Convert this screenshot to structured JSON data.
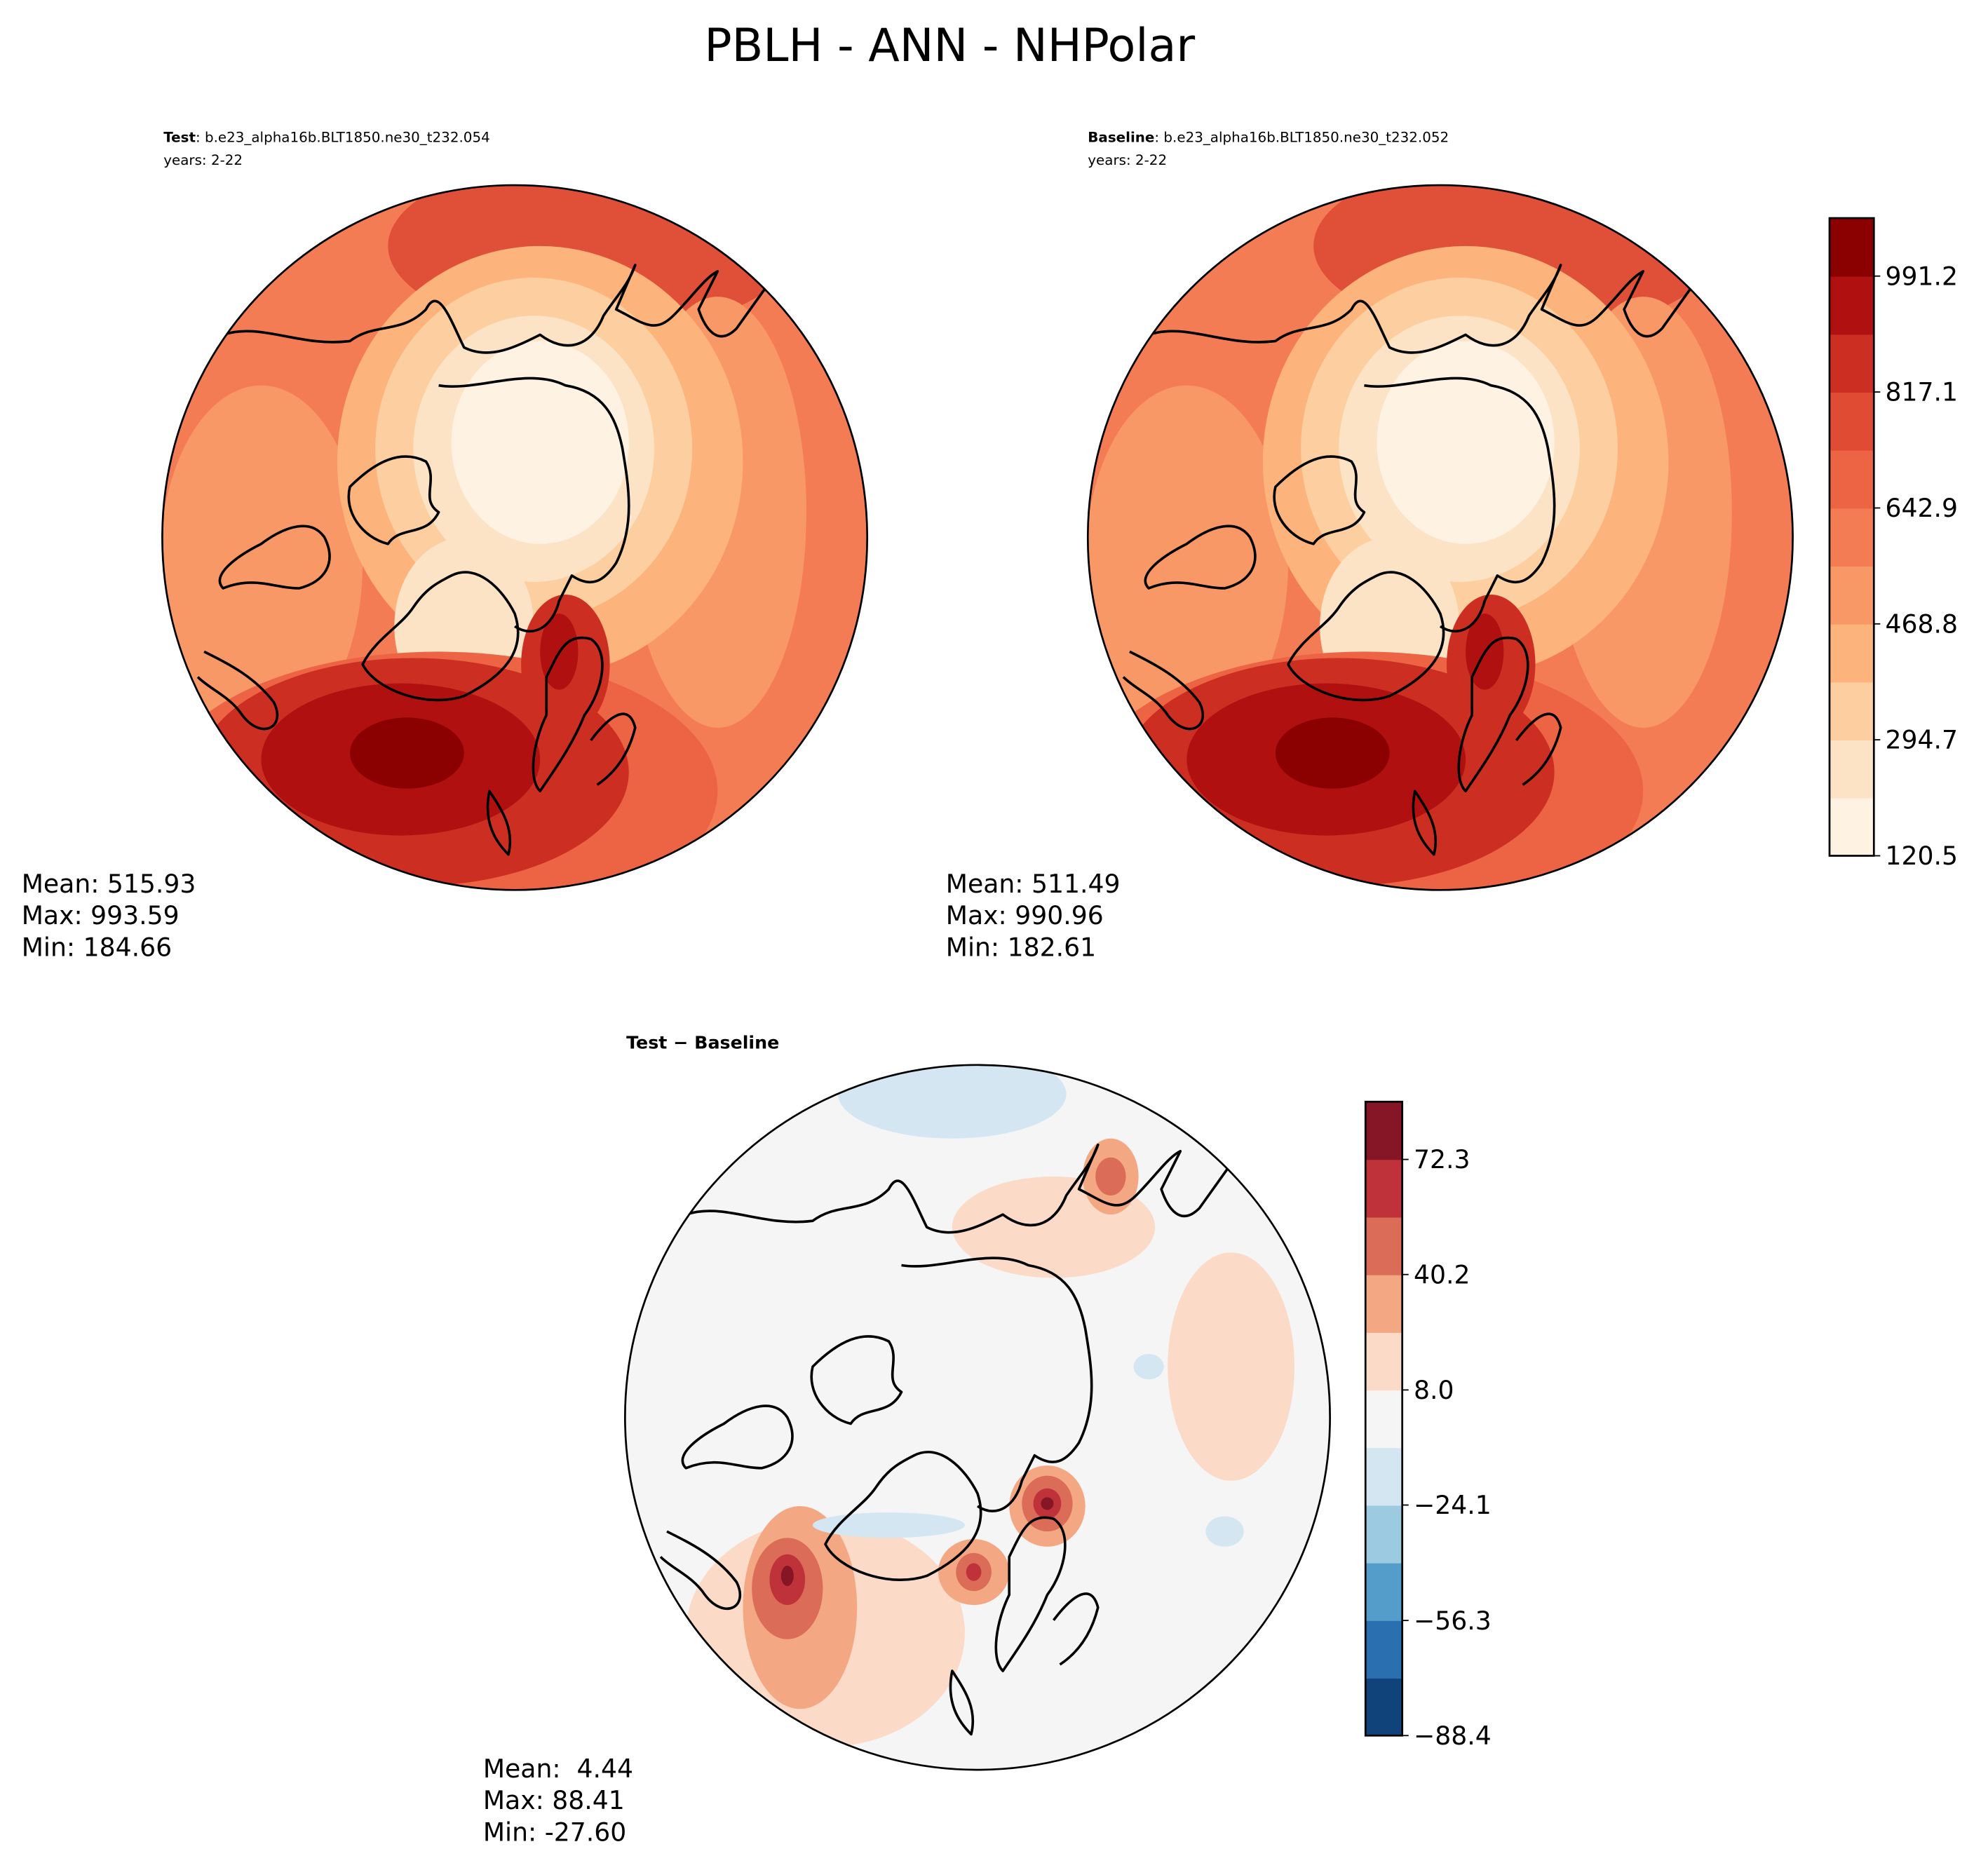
{
  "title": "PBLH - ANN - NHPolar",
  "chart_data": [
    {
      "type": "map",
      "label": "Test",
      "case": ": b.e23_alpha16b.BLT1850.ne30_t232.054",
      "years": "years: 2-22",
      "stats": [
        "Mean: 515.93",
        "Max: 993.59",
        "Min: 184.66"
      ]
    },
    {
      "type": "map",
      "label": "Baseline",
      "case": ": b.e23_alpha16b.BLT1850.ne30_t232.052",
      "years": "years: 2-22",
      "stats": [
        "Mean: 511.49",
        "Max: 990.96",
        "Min: 182.61"
      ],
      "colorbar": {
        "clim": [
          120.5,
          1078.3
        ],
        "cticks": [
          120.5,
          294.7,
          468.8,
          642.9,
          817.1,
          991.2
        ],
        "colors": [
          "#fef2e2",
          "#fde3c6",
          "#fdcfa0",
          "#fcb37c",
          "#f99867",
          "#f47c55",
          "#ec6444",
          "#e04b34",
          "#cc2e22",
          "#b0100f",
          "#8b0000"
        ]
      }
    },
    {
      "type": "map",
      "title": "Test − Baseline",
      "stats": [
        "Mean:  4.44",
        "Max: 88.41",
        "Min: -27.60"
      ],
      "colorbar": {
        "clim": [
          -88.4,
          88.4
        ],
        "cticks": [
          {
            "value": -88.4,
            "label": "−88.4"
          },
          {
            "value": -56.3,
            "label": "−56.3"
          },
          {
            "value": -24.1,
            "label": "−24.1"
          },
          {
            "value": 8,
            "label": "8.0"
          },
          40.2,
          72.3
        ],
        "colors": [
          "#0f437a",
          "#2a6fb0",
          "#549dcb",
          "#9ccae1",
          "#d3e6f1",
          "#f5f5f5",
          "#fbdac8",
          "#f4a783",
          "#db6c58",
          "#c0323a",
          "#861526"
        ]
      }
    }
  ]
}
